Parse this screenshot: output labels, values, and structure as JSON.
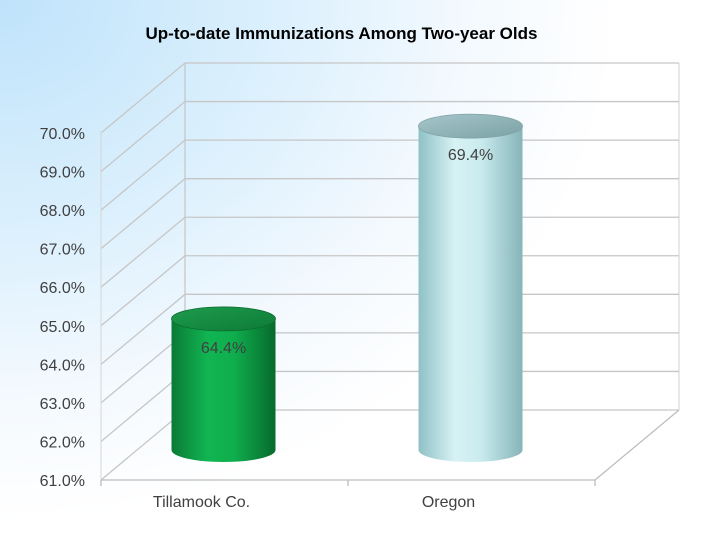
{
  "chart_data": {
    "type": "bar",
    "title": "Up-to-date Immunizations Among Two-year Olds",
    "categories": [
      "Tillamook Co.",
      "Oregon"
    ],
    "values": [
      64.4,
      69.4
    ],
    "data_labels": [
      "64.4%",
      "69.4%"
    ],
    "ylim": [
      61.0,
      70.0
    ],
    "y_ticks": [
      "61.0%",
      "62.0%",
      "63.0%",
      "64.0%",
      "65.0%",
      "66.0%",
      "67.0%",
      "68.0%",
      "69.0%",
      "70.0%"
    ],
    "grid": true,
    "legend": "none",
    "style": "3d-cylinder",
    "colors": {
      "Tillamook Co.": "#0aa84a",
      "Oregon": "#bfe6ea"
    }
  }
}
